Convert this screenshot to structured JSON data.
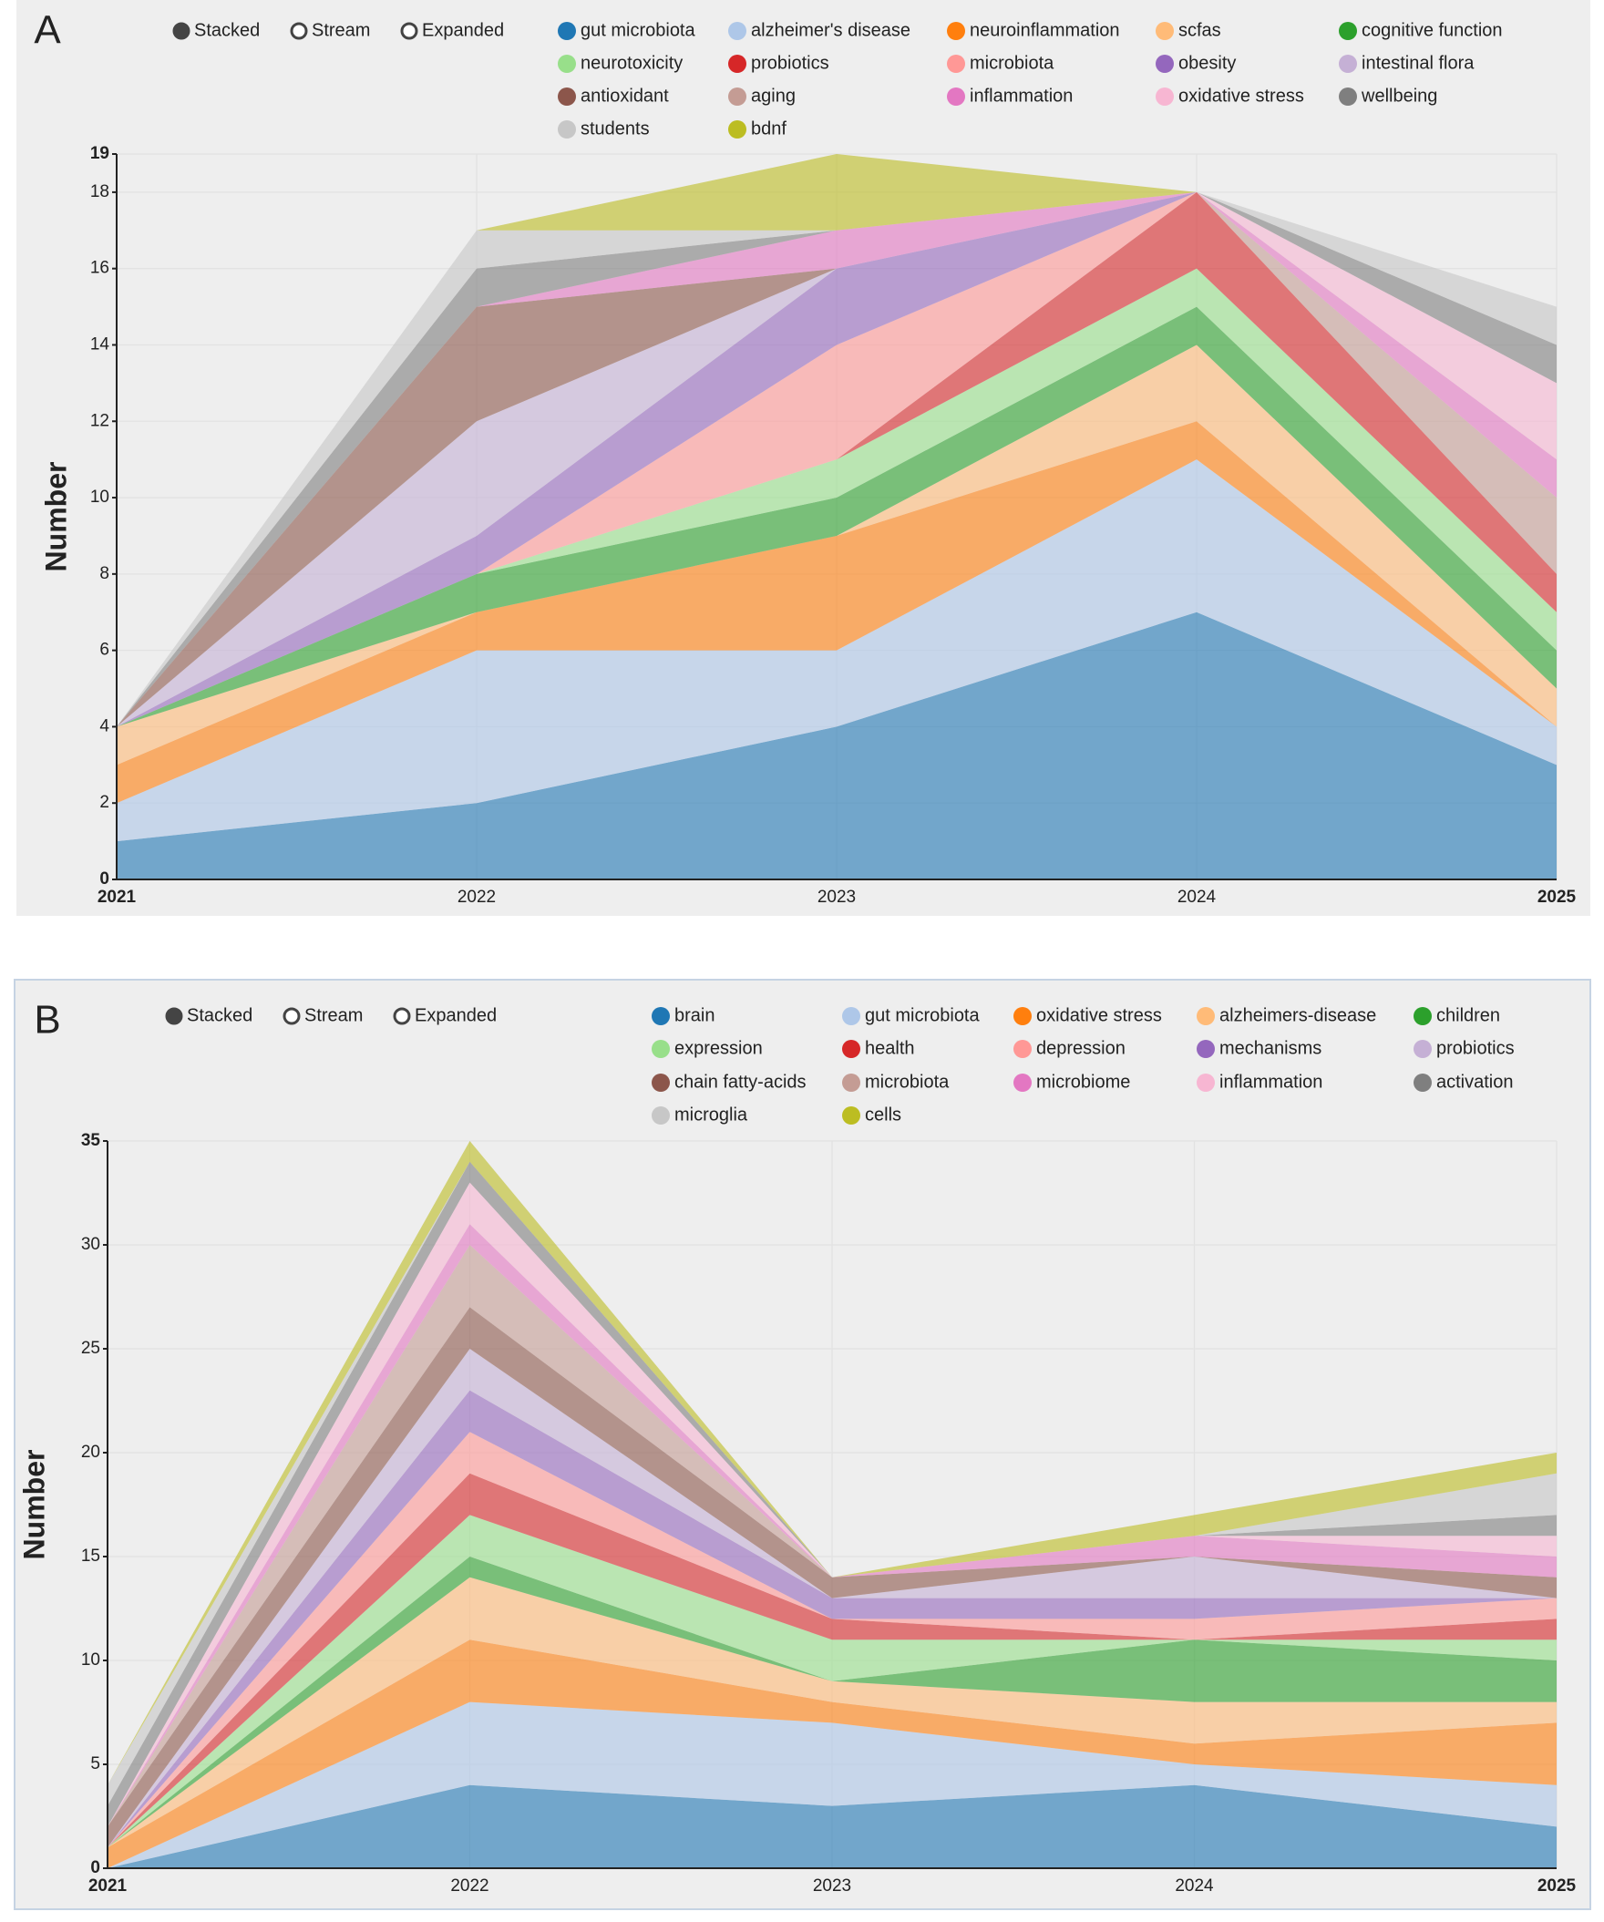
{
  "chart_data": [
    {
      "type": "area",
      "stacked": true,
      "panel_label": "A",
      "modes": [
        "Stacked",
        "Stream",
        "Expanded"
      ],
      "y_label": "Number",
      "x": [
        2021,
        2022,
        2023,
        2024,
        2025
      ],
      "xlim": [
        2021,
        2025
      ],
      "xticks": [
        2021,
        2022,
        2023,
        2024,
        2025
      ],
      "ylim": [
        0,
        19
      ],
      "yticks": [
        0,
        2,
        4,
        6,
        8,
        10,
        12,
        14,
        16,
        18,
        19
      ],
      "grid": true,
      "series": [
        {
          "name": "gut microbiota",
          "color": "#1f77b4",
          "values": [
            1,
            2,
            4,
            7,
            3
          ]
        },
        {
          "name": "alzheimer's disease",
          "color": "#aec7e8",
          "values": [
            1,
            4,
            2,
            4,
            1
          ]
        },
        {
          "name": "neuroinflammation",
          "color": "#ff7f0e",
          "values": [
            1,
            1,
            3,
            1,
            0
          ]
        },
        {
          "name": "scfas",
          "color": "#ffbb78",
          "values": [
            1,
            0,
            0,
            2,
            1
          ]
        },
        {
          "name": "cognitive function",
          "color": "#2ca02c",
          "values": [
            0,
            1,
            1,
            1,
            1
          ]
        },
        {
          "name": "neurotoxicity",
          "color": "#98df8a",
          "values": [
            0,
            0,
            1,
            1,
            1
          ]
        },
        {
          "name": "probiotics",
          "color": "#d62728",
          "values": [
            0,
            0,
            0,
            2,
            1
          ]
        },
        {
          "name": "microbiota",
          "color": "#ff9896",
          "values": [
            0,
            0,
            3,
            0,
            0
          ]
        },
        {
          "name": "obesity",
          "color": "#9467bd",
          "values": [
            0,
            1,
            2,
            0,
            0
          ]
        },
        {
          "name": "intestinal flora",
          "color": "#c5b0d5",
          "values": [
            0,
            3,
            0,
            0,
            0
          ]
        },
        {
          "name": "antioxidant",
          "color": "#8c564b",
          "values": [
            0,
            3,
            0,
            0,
            0
          ]
        },
        {
          "name": "aging",
          "color": "#c49c94",
          "values": [
            0,
            0,
            0,
            0,
            2
          ]
        },
        {
          "name": "inflammation",
          "color": "#e377c2",
          "values": [
            0,
            0,
            1,
            0,
            1
          ]
        },
        {
          "name": "oxidative stress",
          "color": "#f7b6d2",
          "values": [
            0,
            0,
            0,
            0,
            2
          ]
        },
        {
          "name": "wellbeing",
          "color": "#7f7f7f",
          "values": [
            0,
            1,
            0,
            0,
            1
          ]
        },
        {
          "name": "students",
          "color": "#c7c7c7",
          "values": [
            0,
            1,
            0,
            0,
            1
          ]
        },
        {
          "name": "bdnf",
          "color": "#bcbd22",
          "values": [
            0,
            0,
            2,
            0,
            0
          ]
        }
      ]
    },
    {
      "type": "area",
      "stacked": true,
      "panel_label": "B",
      "modes": [
        "Stacked",
        "Stream",
        "Expanded"
      ],
      "y_label": "Number",
      "x": [
        2021,
        2022,
        2023,
        2024,
        2025
      ],
      "xlim": [
        2021,
        2025
      ],
      "xticks": [
        2021,
        2022,
        2023,
        2024,
        2025
      ],
      "ylim": [
        0,
        35
      ],
      "yticks": [
        0,
        5,
        10,
        15,
        20,
        25,
        30,
        35
      ],
      "grid": true,
      "series": [
        {
          "name": "brain",
          "color": "#1f77b4",
          "values": [
            0,
            4,
            3,
            4,
            2
          ]
        },
        {
          "name": "gut microbiota",
          "color": "#aec7e8",
          "values": [
            0,
            4,
            4,
            1,
            2
          ]
        },
        {
          "name": "oxidative stress",
          "color": "#ff7f0e",
          "values": [
            1,
            3,
            1,
            1,
            3
          ]
        },
        {
          "name": "alzheimers-disease",
          "color": "#ffbb78",
          "values": [
            0,
            3,
            1,
            2,
            1
          ]
        },
        {
          "name": "children",
          "color": "#2ca02c",
          "values": [
            0,
            1,
            0,
            3,
            2
          ]
        },
        {
          "name": "expression",
          "color": "#98df8a",
          "values": [
            0,
            2,
            2,
            0,
            1
          ]
        },
        {
          "name": "health",
          "color": "#d62728",
          "values": [
            0,
            2,
            1,
            0,
            1
          ]
        },
        {
          "name": "depression",
          "color": "#ff9896",
          "values": [
            0,
            2,
            0,
            1,
            1
          ]
        },
        {
          "name": "mechanisms",
          "color": "#9467bd",
          "values": [
            0,
            2,
            1,
            1,
            0
          ]
        },
        {
          "name": "probiotics",
          "color": "#c5b0d5",
          "values": [
            0,
            2,
            0,
            2,
            0
          ]
        },
        {
          "name": "chain fatty-acids",
          "color": "#8c564b",
          "values": [
            1,
            2,
            1,
            0,
            1
          ]
        },
        {
          "name": "microbiota",
          "color": "#c49c94",
          "values": [
            0,
            3,
            0,
            0,
            0
          ]
        },
        {
          "name": "microbiome",
          "color": "#e377c2",
          "values": [
            0,
            1,
            0,
            1,
            1
          ]
        },
        {
          "name": "inflammation",
          "color": "#f7b6d2",
          "values": [
            0,
            2,
            0,
            0,
            1
          ]
        },
        {
          "name": "activation",
          "color": "#7f7f7f",
          "values": [
            1,
            1,
            0,
            0,
            1
          ]
        },
        {
          "name": "microglia",
          "color": "#c7c7c7",
          "values": [
            1,
            0,
            0,
            0,
            2
          ]
        },
        {
          "name": "cells",
          "color": "#bcbd22",
          "values": [
            0,
            1,
            0,
            1,
            1
          ]
        }
      ]
    }
  ]
}
